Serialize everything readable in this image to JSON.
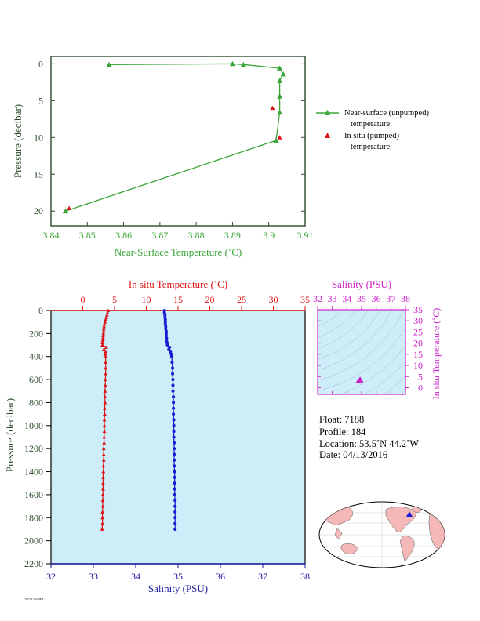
{
  "chart_data": [
    {
      "type": "line",
      "xlabel": "Near-Surface Temperature (˚C)",
      "ylabel": "Pressure (decibar)",
      "xlim": [
        3.84,
        3.91
      ],
      "ylim": [
        22,
        -1
      ],
      "x_ticks": [
        "3.84",
        "3.85",
        "3.86",
        "3.87",
        "3.88",
        "3.89",
        "3.9",
        "3.91"
      ],
      "y_ticks": [
        "0",
        "5",
        "10",
        "15",
        "20"
      ],
      "series": [
        {
          "name": "Near-surface (unpumped) temperature.",
          "color": "#3aa53a",
          "x": [
            3.856,
            3.89,
            3.893,
            3.903,
            3.904,
            3.903,
            3.903,
            3.903,
            3.902,
            3.844
          ],
          "y": [
            0.1,
            0.0,
            0.1,
            0.6,
            1.4,
            2.3,
            4.4,
            6.6,
            10.4,
            20.0
          ]
        },
        {
          "name": "In situ (pumped) temperature.",
          "color": "#dd1111",
          "x": [
            3.901,
            3.903,
            3.845
          ],
          "y": [
            6.0,
            10.0,
            19.6
          ]
        }
      ],
      "legend": [
        "Near-surface (unpumped)",
        "temperature.",
        "In situ (pumped)",
        "temperature."
      ],
      "legend_position": "right"
    },
    {
      "type": "scatter",
      "xlabel_top": "In situ Temperature (˚C)",
      "xlabel_bottom": "Salinity (PSU)",
      "ylabel": "Pressure (decibar)",
      "temp_lim": [
        -5,
        35
      ],
      "sal_lim": [
        32,
        38
      ],
      "ylim": [
        2200,
        0
      ],
      "temp_ticks": [
        "0",
        "5",
        "10",
        "15",
        "20",
        "25",
        "30",
        "35"
      ],
      "sal_ticks": [
        "32",
        "33",
        "34",
        "35",
        "36",
        "37",
        "38"
      ],
      "y_ticks": [
        "0",
        "200",
        "400",
        "600",
        "800",
        "1000",
        "1200",
        "1400",
        "1600",
        "1800",
        "2000",
        "2200"
      ],
      "temperature": {
        "color": "#dd1111",
        "pressure": [
          0,
          20,
          40,
          60,
          80,
          100,
          120,
          140,
          160,
          180,
          200,
          220,
          240,
          260,
          280,
          300,
          320,
          340,
          360,
          380,
          400,
          450,
          500,
          550,
          600,
          650,
          700,
          750,
          800,
          850,
          900,
          950,
          1000,
          1050,
          1100,
          1150,
          1200,
          1250,
          1300,
          1350,
          1400,
          1450,
          1500,
          1550,
          1600,
          1650,
          1700,
          1750,
          1800,
          1850,
          1900
        ],
        "value": [
          4.0,
          3.9,
          3.8,
          3.7,
          3.6,
          3.5,
          3.4,
          3.35,
          3.3,
          3.3,
          3.25,
          3.2,
          3.2,
          3.15,
          3.1,
          3.1,
          3.7,
          3.3,
          3.6,
          3.5,
          3.6,
          3.6,
          3.6,
          3.6,
          3.55,
          3.55,
          3.5,
          3.5,
          3.5,
          3.45,
          3.45,
          3.4,
          3.4,
          3.4,
          3.35,
          3.35,
          3.3,
          3.3,
          3.3,
          3.25,
          3.25,
          3.2,
          3.2,
          3.2,
          3.15,
          3.15,
          3.15,
          3.1,
          3.1,
          3.1,
          3.05
        ]
      },
      "salinity": {
        "color": "#1a1ad0",
        "pressure": [
          0,
          20,
          40,
          60,
          80,
          100,
          120,
          140,
          160,
          180,
          200,
          220,
          240,
          260,
          280,
          300,
          320,
          340,
          360,
          380,
          400,
          450,
          500,
          550,
          600,
          650,
          700,
          750,
          800,
          850,
          900,
          950,
          1000,
          1050,
          1100,
          1150,
          1200,
          1250,
          1300,
          1350,
          1400,
          1450,
          1500,
          1550,
          1600,
          1650,
          1700,
          1750,
          1800,
          1850,
          1900
        ],
        "value": [
          34.68,
          34.68,
          34.69,
          34.69,
          34.7,
          34.7,
          34.7,
          34.71,
          34.71,
          34.72,
          34.72,
          34.72,
          34.73,
          34.73,
          34.74,
          34.75,
          34.8,
          34.78,
          34.82,
          34.84,
          34.85,
          34.86,
          34.87,
          34.87,
          34.88,
          34.88,
          34.88,
          34.89,
          34.89,
          34.89,
          34.89,
          34.9,
          34.9,
          34.9,
          34.9,
          34.91,
          34.91,
          34.91,
          34.91,
          34.91,
          34.92,
          34.92,
          34.92,
          34.92,
          34.92,
          34.93,
          34.93,
          34.93,
          34.93,
          34.93,
          34.93
        ]
      }
    },
    {
      "type": "scatter",
      "xlabel": "Salinity (PSU)",
      "ylabel": "In situ Temperature (˚C)",
      "xlim": [
        32,
        38
      ],
      "ylim": [
        -3,
        35
      ],
      "x_ticks": [
        "32",
        "33",
        "34",
        "35",
        "36",
        "37",
        "38"
      ],
      "y_ticks": [
        "0",
        "5",
        "10",
        "15",
        "20",
        "25",
        "30",
        "35"
      ],
      "points": {
        "color": "#cc22cc",
        "salinity": [
          34.78,
          34.85,
          34.88,
          34.9,
          34.92,
          34.95
        ],
        "temperature": [
          3.1,
          3.4,
          3.6,
          3.8,
          3.5,
          3.2
        ]
      }
    }
  ],
  "info": {
    "float": "Float:  7188",
    "profile": "Profile:  184",
    "location": "Location:  53.5˚N  44.2˚W",
    "date": "Date:  04/13/2016"
  },
  "footnote": "P·007·0T·24 030816",
  "colors": {
    "near_surface": "#3aa53a",
    "temperature": "#dd1111",
    "salinity": "#1a1ad0",
    "ts_diagram": "#cc22cc",
    "panel_bg": "#cdeef8",
    "map_land": "#f4b8b8"
  },
  "icons": [
    "world-map-icon",
    "float-location-marker-icon"
  ]
}
